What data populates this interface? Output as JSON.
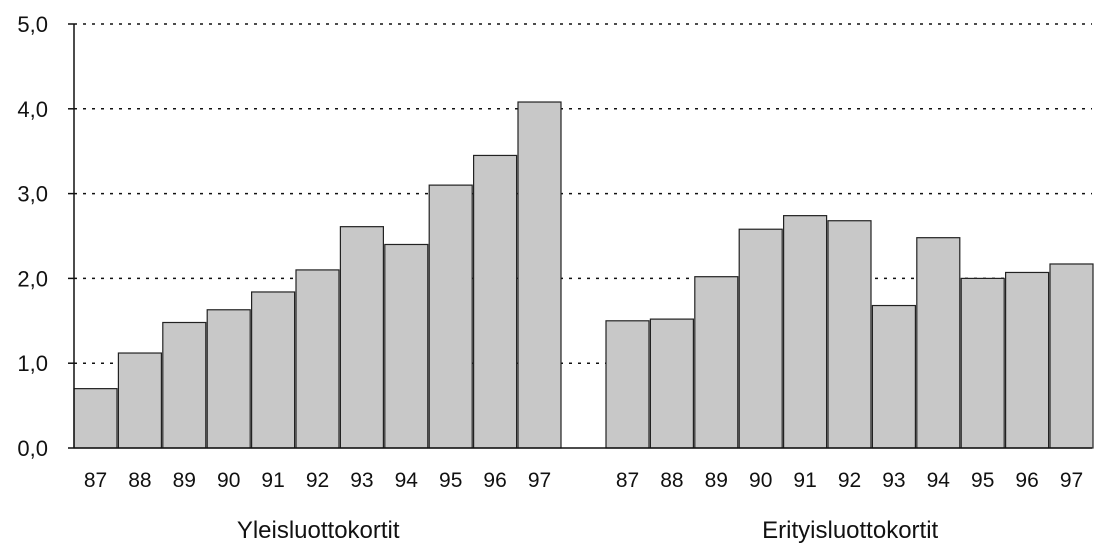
{
  "chart_data": {
    "type": "bar",
    "title": "",
    "xlabel": "",
    "ylabel": "",
    "ylim": [
      0,
      5
    ],
    "y_ticks": [
      "0,0",
      "1,0",
      "2,0",
      "3,0",
      "4,0",
      "5,0"
    ],
    "grid": true,
    "bar_color": "#c8c8c8",
    "groups": [
      {
        "label": "Yleisluottokortit",
        "categories": [
          "87",
          "88",
          "89",
          "90",
          "91",
          "92",
          "93",
          "94",
          "95",
          "96",
          "97"
        ],
        "values": [
          0.7,
          1.12,
          1.48,
          1.63,
          1.84,
          2.1,
          2.61,
          2.4,
          3.1,
          3.45,
          4.08
        ]
      },
      {
        "label": "Erityisluottokortit",
        "categories": [
          "87",
          "88",
          "89",
          "90",
          "91",
          "92",
          "93",
          "94",
          "95",
          "96",
          "97"
        ],
        "values": [
          1.5,
          1.52,
          2.02,
          2.58,
          2.74,
          2.68,
          1.68,
          2.48,
          2.0,
          2.07,
          2.17
        ]
      }
    ]
  }
}
